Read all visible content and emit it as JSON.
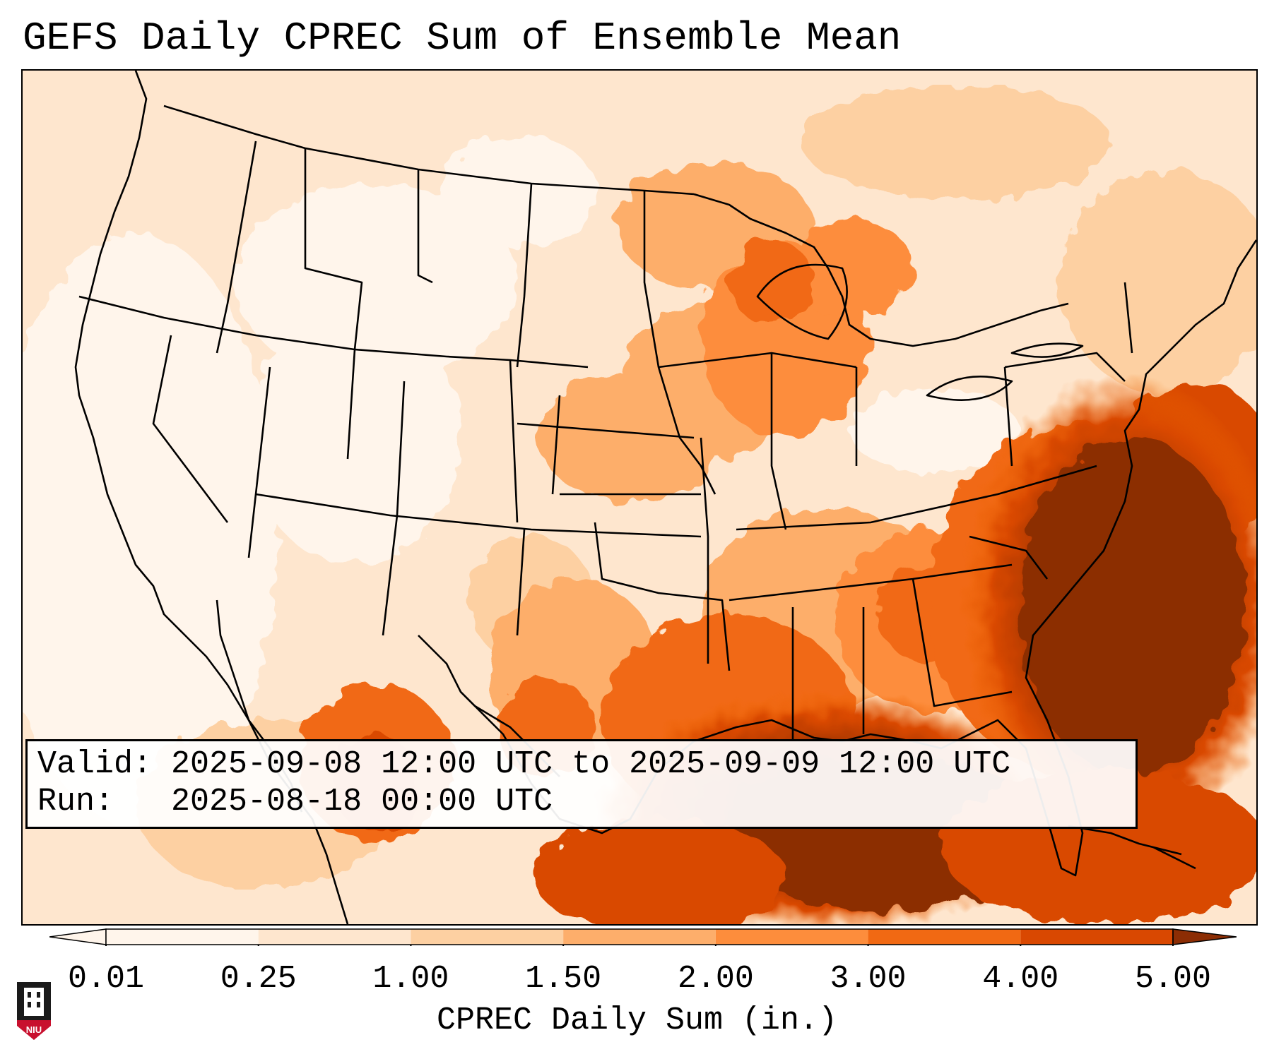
{
  "title": "GEFS Daily CPREC Sum of Ensemble Mean",
  "info": {
    "valid_line": "Valid: 2025-09-08 12:00 UTC to 2025-09-09 12:00 UTC",
    "run_line": "Run:   2025-08-18 00:00 UTC"
  },
  "colorbar": {
    "label": "CPREC Daily Sum (in.)",
    "ticks": [
      "0.01",
      "0.25",
      "1.00",
      "1.50",
      "2.00",
      "3.00",
      "4.00",
      "5.00"
    ],
    "colors": [
      "#fff5eb",
      "#fee6ce",
      "#fdd0a2",
      "#fdae6b",
      "#fd8d3c",
      "#f16913",
      "#d94801",
      "#8c2d04"
    ],
    "extend": "both"
  },
  "logo": {
    "text": "NIU",
    "name": "niu-logo"
  }
}
